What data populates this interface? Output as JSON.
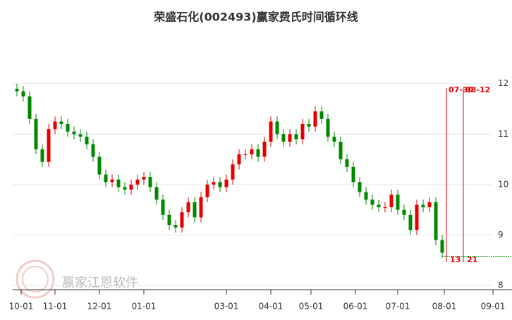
{
  "chart_data": {
    "type": "candlestick",
    "title": "荣盛石化(002493)赢家费氏时间循环线",
    "watermark": "赢家江恩软件",
    "up_color": "#e60000",
    "down_color": "#008800",
    "xlim": [
      0,
      228
    ],
    "ylim": [
      8,
      13.1
    ],
    "yticks": [
      8,
      9,
      10,
      11,
      12
    ],
    "grid": true,
    "xticks": [
      {
        "value": 4,
        "label": "10-01"
      },
      {
        "value": 20,
        "label": "11-01"
      },
      {
        "value": 41,
        "label": "12-01"
      },
      {
        "value": 62,
        "label": "01-01"
      },
      {
        "value": 101,
        "label": "03-01"
      },
      {
        "value": 122,
        "label": "04-01"
      },
      {
        "value": 141,
        "label": "05-01"
      },
      {
        "value": 162,
        "label": "06-01"
      },
      {
        "value": 182,
        "label": "07-01"
      },
      {
        "value": 204,
        "label": "08-01"
      },
      {
        "value": 227,
        "label": "09-01"
      }
    ],
    "x": [
      2,
      5,
      8,
      11,
      14,
      17,
      20,
      23,
      26,
      29,
      32,
      35,
      38,
      41,
      44,
      47,
      50,
      53,
      56,
      59,
      62,
      65,
      68,
      71,
      74,
      77,
      80,
      83,
      86,
      89,
      92,
      95,
      98,
      101,
      104,
      107,
      110,
      113,
      116,
      119,
      122,
      125,
      128,
      131,
      134,
      137,
      140,
      143,
      146,
      149,
      152,
      155,
      158,
      161,
      164,
      167,
      170,
      173,
      176,
      179,
      182,
      185,
      188,
      191,
      194,
      197,
      200,
      203
    ],
    "open": [
      11.9,
      11.85,
      11.75,
      11.3,
      10.7,
      10.45,
      11.1,
      11.25,
      11.2,
      11.05,
      11.0,
      10.95,
      10.8,
      10.55,
      10.2,
      10.05,
      10.1,
      9.95,
      9.9,
      10.0,
      10.1,
      10.15,
      9.95,
      9.7,
      9.4,
      9.2,
      9.15,
      9.45,
      9.65,
      9.35,
      9.75,
      10.0,
      10.05,
      9.95,
      10.1,
      10.4,
      10.6,
      10.6,
      10.7,
      10.55,
      10.85,
      11.25,
      11.0,
      10.85,
      11.0,
      10.9,
      11.2,
      11.15,
      11.45,
      11.3,
      10.95,
      10.85,
      10.5,
      10.35,
      10.05,
      9.85,
      9.7,
      9.6,
      9.55,
      9.55,
      9.8,
      9.5,
      9.4,
      9.1,
      9.6,
      9.55,
      9.65,
      8.9
    ],
    "high": [
      12.0,
      11.95,
      11.85,
      11.4,
      10.8,
      11.2,
      11.35,
      11.35,
      11.3,
      11.15,
      11.1,
      11.05,
      10.9,
      10.65,
      10.3,
      10.2,
      10.2,
      10.05,
      10.1,
      10.2,
      10.25,
      10.25,
      10.05,
      9.8,
      9.5,
      9.3,
      9.55,
      9.75,
      9.75,
      9.85,
      10.1,
      10.15,
      10.15,
      10.2,
      10.5,
      10.7,
      10.7,
      10.8,
      10.8,
      10.95,
      11.35,
      11.35,
      11.1,
      11.1,
      11.1,
      11.3,
      11.3,
      11.55,
      11.55,
      11.4,
      11.05,
      10.95,
      10.6,
      10.45,
      10.15,
      9.95,
      9.8,
      9.7,
      9.65,
      9.9,
      9.9,
      9.6,
      9.5,
      9.7,
      9.7,
      9.75,
      9.75,
      9.0
    ],
    "low": [
      11.75,
      11.65,
      11.2,
      10.6,
      10.35,
      10.35,
      11.0,
      11.1,
      10.95,
      10.9,
      10.85,
      10.7,
      10.45,
      10.1,
      9.95,
      9.95,
      9.85,
      9.8,
      9.8,
      9.9,
      10.0,
      9.85,
      9.6,
      9.3,
      9.1,
      9.05,
      9.05,
      9.35,
      9.25,
      9.25,
      9.65,
      9.9,
      9.85,
      9.85,
      10.0,
      10.3,
      10.5,
      10.5,
      10.45,
      10.45,
      10.75,
      10.9,
      10.75,
      10.75,
      10.8,
      10.8,
      11.05,
      11.05,
      11.2,
      10.85,
      10.75,
      10.4,
      10.25,
      9.95,
      9.75,
      9.6,
      9.5,
      9.45,
      9.45,
      9.45,
      9.4,
      9.3,
      9.0,
      9.0,
      9.45,
      9.45,
      8.8,
      8.55
    ],
    "close": [
      11.85,
      11.75,
      11.3,
      10.7,
      10.45,
      11.1,
      11.25,
      11.2,
      11.05,
      11.0,
      10.95,
      10.8,
      10.55,
      10.2,
      10.05,
      10.1,
      9.95,
      9.9,
      10.0,
      10.1,
      10.15,
      9.95,
      9.7,
      9.4,
      9.2,
      9.15,
      9.45,
      9.65,
      9.35,
      9.75,
      10.0,
      10.05,
      9.95,
      10.1,
      10.4,
      10.6,
      10.6,
      10.7,
      10.55,
      10.85,
      11.25,
      11.0,
      10.85,
      11.0,
      10.9,
      11.2,
      11.15,
      11.45,
      11.3,
      10.95,
      10.85,
      10.5,
      10.35,
      10.05,
      9.85,
      9.7,
      9.6,
      9.55,
      9.55,
      9.8,
      9.5,
      9.4,
      9.1,
      9.6,
      9.55,
      9.65,
      8.9,
      8.65
    ],
    "cycle_lines": [
      {
        "x": 205,
        "label": "07-30",
        "count": 13,
        "color": "#e60000"
      },
      {
        "x": 213,
        "label": "08-12",
        "count": 21,
        "color": "#e60000"
      }
    ],
    "level": {
      "value": 8.58,
      "color": "#008800"
    }
  }
}
